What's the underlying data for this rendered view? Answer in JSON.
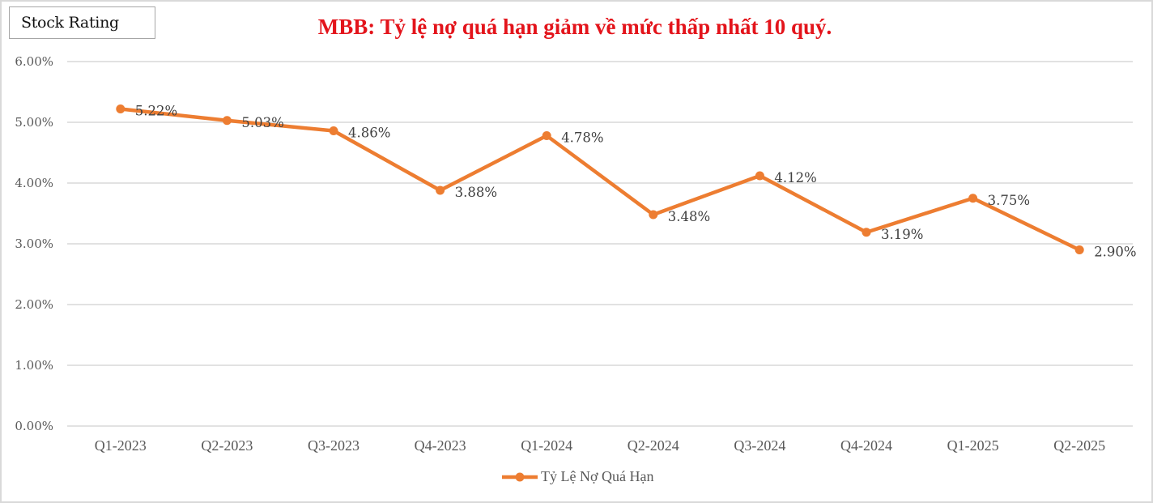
{
  "badge": {
    "label": "Stock Rating"
  },
  "header": {
    "title": "MBB: Tỷ lệ nợ quá hạn giảm về mức thấp nhất 10 quý."
  },
  "legend": {
    "label": "Tỷ Lệ Nợ Quá Hạn",
    "color": "#ed7d31"
  },
  "colors": {
    "line": "#ed7d31",
    "title": "#e3141b",
    "grid": "#d9d9d9"
  },
  "chart_data": {
    "type": "line",
    "title": "MBB: Tỷ lệ nợ quá hạn giảm về mức thấp nhất 10 quý.",
    "xlabel": "",
    "ylabel": "",
    "categories": [
      "Q1-2023",
      "Q2-2023",
      "Q3-2023",
      "Q4-2023",
      "Q1-2024",
      "Q2-2024",
      "Q3-2024",
      "Q4-2024",
      "Q1-2025",
      "Q2-2025"
    ],
    "series": [
      {
        "name": "Tỷ Lệ Nợ Quá Hạn",
        "values": [
          5.22,
          5.03,
          4.86,
          3.88,
          4.78,
          3.48,
          4.12,
          3.19,
          3.75,
          2.9
        ],
        "color": "#ed7d31"
      }
    ],
    "data_labels": [
      "5.22%",
      "5.03%",
      "4.86%",
      "3.88%",
      "4.78%",
      "3.48%",
      "4.12%",
      "3.19%",
      "3.75%",
      "2.90%"
    ],
    "yticks": [
      "0.00%",
      "1.00%",
      "2.00%",
      "3.00%",
      "4.00%",
      "5.00%",
      "6.00%"
    ],
    "ylim": [
      0,
      6
    ],
    "grid": true,
    "legend_position": "bottom"
  }
}
